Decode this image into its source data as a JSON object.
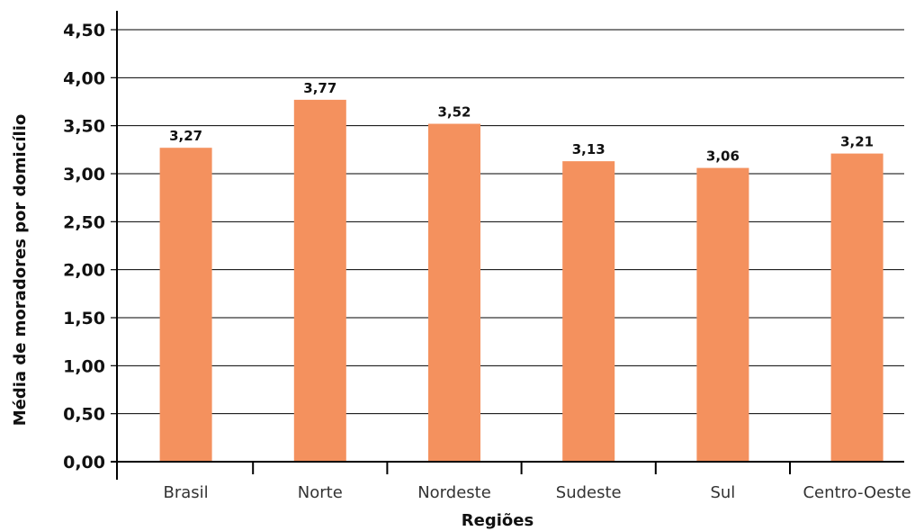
{
  "chart_data": {
    "type": "bar",
    "categories": [
      "Brasil",
      "Norte",
      "Nordeste",
      "Sudeste",
      "Sul",
      "Centro-Oeste"
    ],
    "values": [
      3.27,
      3.77,
      3.52,
      3.13,
      3.06,
      3.21
    ],
    "data_labels": [
      "3,27",
      "3,77",
      "3,52",
      "3,13",
      "3,06",
      "3,21"
    ],
    "title": "",
    "xlabel": "Regiões",
    "ylabel": "Média de moradores por domicílio",
    "ylim": [
      0,
      4.5
    ],
    "yticks": [
      0,
      0.5,
      1,
      1.5,
      2,
      2.5,
      3,
      3.5,
      4,
      4.5
    ],
    "ytick_labels": [
      "0,00",
      "0,50",
      "1,00",
      "1,50",
      "2,00",
      "2,50",
      "3,00",
      "3,50",
      "4,00",
      "4,50"
    ],
    "grid": "horizontal",
    "legend": "none",
    "bar_color": "#F4915E",
    "grid_color": "#000000",
    "text_color": "#111111"
  }
}
